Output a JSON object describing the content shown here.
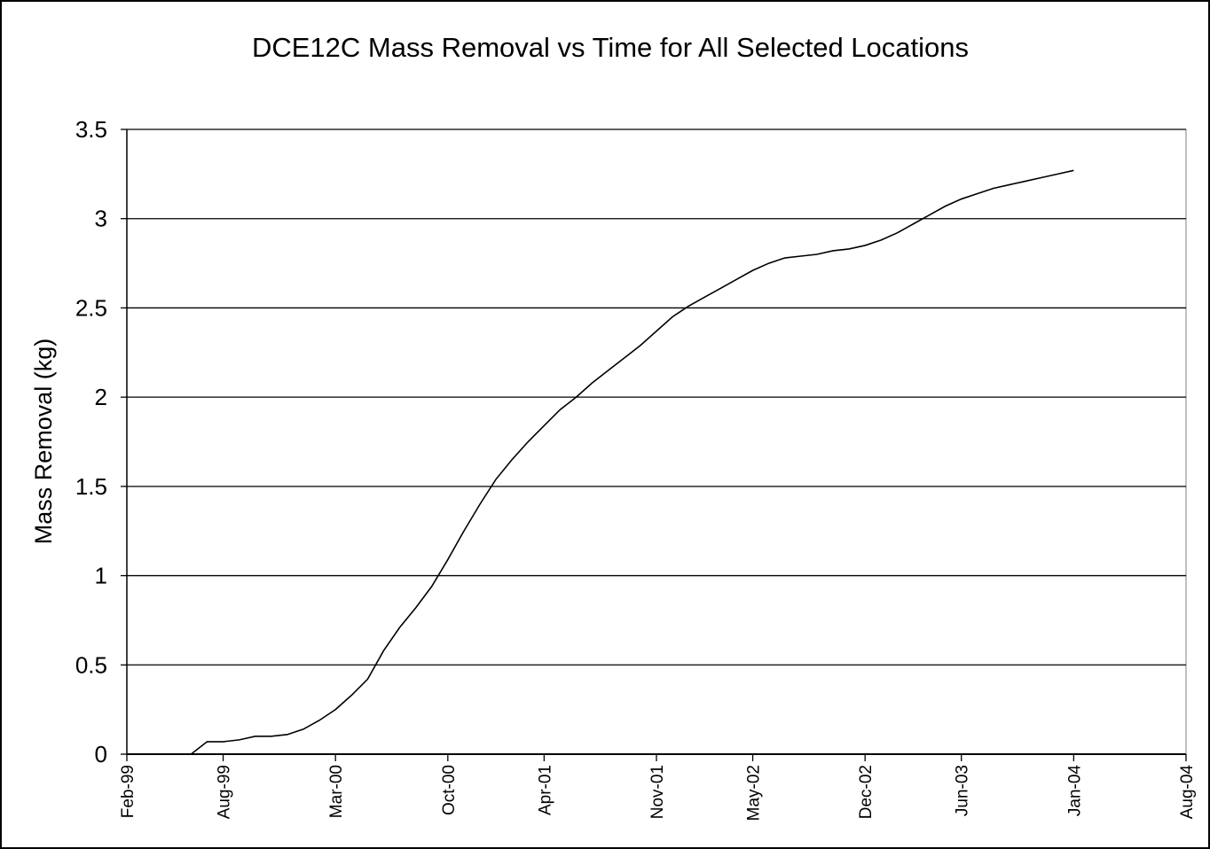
{
  "chart_data": {
    "type": "line",
    "title": "DCE12C Mass Removal vs Time for All Selected Locations",
    "y_label": "Mass Removal (kg)",
    "x": [
      "1999-06",
      "1999-07",
      "1999-08",
      "1999-09",
      "1999-10",
      "1999-11",
      "1999-12",
      "2000-01",
      "2000-02",
      "2000-03",
      "2000-04",
      "2000-05",
      "2000-06",
      "2000-07",
      "2000-08",
      "2000-09",
      "2000-10",
      "2000-11",
      "2000-12",
      "2001-01",
      "2001-02",
      "2001-03",
      "2001-04",
      "2001-05",
      "2001-06",
      "2001-07",
      "2001-08",
      "2001-09",
      "2001-10",
      "2001-11",
      "2001-12",
      "2002-01",
      "2002-02",
      "2002-03",
      "2002-04",
      "2002-05",
      "2002-06",
      "2002-07",
      "2002-08",
      "2002-09",
      "2002-10",
      "2002-11",
      "2002-12",
      "2003-01",
      "2003-02",
      "2003-03",
      "2003-04",
      "2003-05",
      "2003-06",
      "2003-07",
      "2003-08",
      "2003-09",
      "2003-10",
      "2003-11",
      "2003-12",
      "2004-01"
    ],
    "series": [
      {
        "name": "Mass Removal",
        "color": "#000000",
        "values": [
          0,
          0.07,
          0.07,
          0.08,
          0.1,
          0.1,
          0.11,
          0.14,
          0.19,
          0.25,
          0.33,
          0.42,
          0.58,
          0.71,
          0.82,
          0.94,
          1.09,
          1.25,
          1.4,
          1.54,
          1.65,
          1.75,
          1.84,
          1.93,
          2.0,
          2.08,
          2.15,
          2.22,
          2.29,
          2.37,
          2.45,
          2.51,
          2.56,
          2.61,
          2.66,
          2.71,
          2.75,
          2.78,
          2.79,
          2.8,
          2.82,
          2.83,
          2.85,
          2.88,
          2.92,
          2.97,
          3.02,
          3.07,
          3.11,
          3.14,
          3.17,
          3.19,
          3.21,
          3.23,
          3.25,
          3.27
        ]
      }
    ],
    "xlim": [
      "1999-02",
      "2004-08"
    ],
    "xticks": [
      {
        "value": "1999-02",
        "label": "Feb-99"
      },
      {
        "value": "1999-08",
        "label": "Aug-99"
      },
      {
        "value": "2000-03",
        "label": "Mar-00"
      },
      {
        "value": "2000-10",
        "label": "Oct-00"
      },
      {
        "value": "2001-04",
        "label": "Apr-01"
      },
      {
        "value": "2001-11",
        "label": "Nov-01"
      },
      {
        "value": "2002-05",
        "label": "May-02"
      },
      {
        "value": "2002-12",
        "label": "Dec-02"
      },
      {
        "value": "2003-06",
        "label": "Jun-03"
      },
      {
        "value": "2004-01",
        "label": "Jan-04"
      },
      {
        "value": "2004-08",
        "label": "Aug-04"
      }
    ],
    "ylim": [
      0,
      3.5
    ],
    "yticks": [
      0,
      0.5,
      1,
      1.5,
      2,
      2.5,
      3,
      3.5
    ],
    "grid": true
  }
}
